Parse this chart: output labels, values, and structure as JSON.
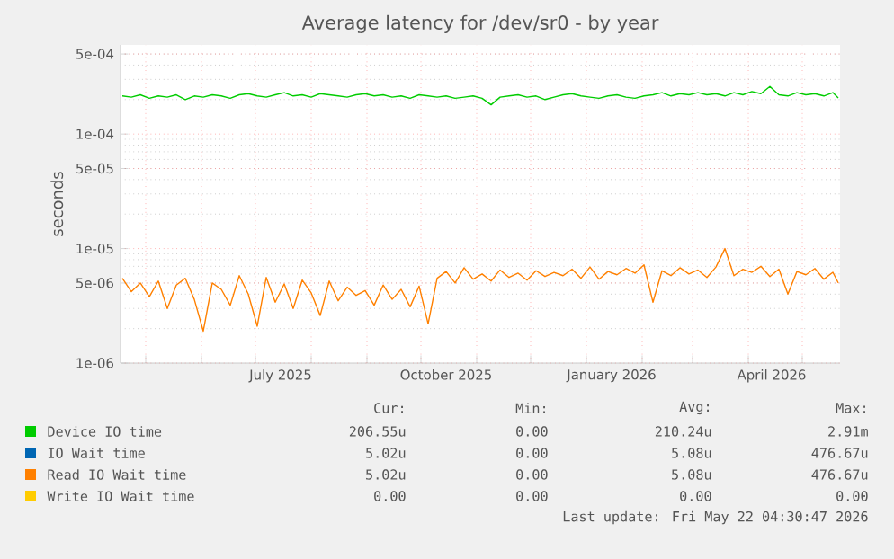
{
  "chart_data": {
    "type": "line",
    "title": "Average latency for /dev/sr0 - by year",
    "ylabel": "seconds",
    "log": "y",
    "grid": true,
    "legend": "bottom",
    "xlim": [
      "2025-04-17",
      "2026-05-22"
    ],
    "xticks": [
      {
        "value": "2025-05-01",
        "label": null
      },
      {
        "value": "2025-06-01",
        "label": null
      },
      {
        "value": "2025-07-01",
        "label": null
      },
      {
        "value": "2025-08-01",
        "label": null
      },
      {
        "value": "2025-09-01",
        "label": null
      },
      {
        "value": "2025-10-01",
        "label": null
      },
      {
        "value": "2025-11-01",
        "label": null
      },
      {
        "value": "2025-12-01",
        "label": null
      },
      {
        "value": "2026-01-01",
        "label": null
      },
      {
        "value": "2026-02-01",
        "label": null
      },
      {
        "value": "2026-03-01",
        "label": null
      },
      {
        "value": "2026-04-01",
        "label": null
      },
      {
        "value": "2026-05-01",
        "label": null
      },
      {
        "value": "2025-07-15",
        "label": "July 2025"
      },
      {
        "value": "2025-10-15",
        "label": "October 2025"
      },
      {
        "value": "2026-01-15",
        "label": "January 2026"
      },
      {
        "value": "2026-04-14",
        "label": "April 2026"
      }
    ],
    "ylim": [
      1e-06,
      0.0006
    ],
    "yticks": [
      {
        "value": 1e-06,
        "label": "1e-06"
      },
      {
        "value": 5e-06,
        "label": "5e-06"
      },
      {
        "value": 1e-05,
        "label": "1e-05"
      },
      {
        "value": 5e-05,
        "label": "5e-05"
      },
      {
        "value": 0.0001,
        "label": "1e-04"
      },
      {
        "value": 0.0005,
        "label": "5e-04"
      }
    ],
    "x": [
      "2025-04-18",
      "2025-04-23",
      "2025-04-28",
      "2025-05-03",
      "2025-05-08",
      "2025-05-13",
      "2025-05-18",
      "2025-05-23",
      "2025-05-28",
      "2025-06-02",
      "2025-06-07",
      "2025-06-12",
      "2025-06-17",
      "2025-06-22",
      "2025-06-27",
      "2025-07-02",
      "2025-07-07",
      "2025-07-12",
      "2025-07-17",
      "2025-07-22",
      "2025-07-27",
      "2025-08-01",
      "2025-08-06",
      "2025-08-11",
      "2025-08-16",
      "2025-08-21",
      "2025-08-26",
      "2025-08-31",
      "2025-09-05",
      "2025-09-10",
      "2025-09-15",
      "2025-09-20",
      "2025-09-25",
      "2025-09-30",
      "2025-10-05",
      "2025-10-10",
      "2025-10-15",
      "2025-10-20",
      "2025-10-25",
      "2025-10-30",
      "2025-11-04",
      "2025-11-09",
      "2025-11-14",
      "2025-11-19",
      "2025-11-24",
      "2025-11-29",
      "2025-12-04",
      "2025-12-09",
      "2025-12-14",
      "2025-12-19",
      "2025-12-24",
      "2025-12-29",
      "2026-01-03",
      "2026-01-08",
      "2026-01-13",
      "2026-01-18",
      "2026-01-23",
      "2026-01-28",
      "2026-02-02",
      "2026-02-07",
      "2026-02-12",
      "2026-02-17",
      "2026-02-22",
      "2026-02-27",
      "2026-03-04",
      "2026-03-09",
      "2026-03-14",
      "2026-03-19",
      "2026-03-24",
      "2026-03-29",
      "2026-04-03",
      "2026-04-08",
      "2026-04-13",
      "2026-04-18",
      "2026-04-23",
      "2026-04-28",
      "2026-05-03",
      "2026-05-08",
      "2026-05-13",
      "2026-05-18",
      "2026-05-21"
    ],
    "series": [
      {
        "name": "Device IO time",
        "color": "#00cc00",
        "values": [
          0.000215,
          0.00021,
          0.00022,
          0.000205,
          0.000215,
          0.00021,
          0.00022,
          0.0002,
          0.000215,
          0.00021,
          0.00022,
          0.000215,
          0.000205,
          0.00022,
          0.000225,
          0.000215,
          0.00021,
          0.00022,
          0.00023,
          0.000215,
          0.00022,
          0.00021,
          0.000225,
          0.00022,
          0.000215,
          0.00021,
          0.00022,
          0.000225,
          0.000215,
          0.00022,
          0.00021,
          0.000215,
          0.000205,
          0.00022,
          0.000215,
          0.00021,
          0.000215,
          0.000205,
          0.00021,
          0.000215,
          0.000205,
          0.00018,
          0.00021,
          0.000215,
          0.00022,
          0.00021,
          0.000215,
          0.0002,
          0.00021,
          0.00022,
          0.000225,
          0.000215,
          0.00021,
          0.000205,
          0.000215,
          0.00022,
          0.00021,
          0.000205,
          0.000215,
          0.00022,
          0.00023,
          0.000215,
          0.000225,
          0.00022,
          0.00023,
          0.00022,
          0.000225,
          0.000215,
          0.00023,
          0.00022,
          0.000235,
          0.000225,
          0.00026,
          0.00022,
          0.000215,
          0.00023,
          0.00022,
          0.000225,
          0.000215,
          0.00023,
          0.000207
        ]
      },
      {
        "name": "IO Wait time",
        "color": "#0066b3",
        "values": [
          null,
          null,
          null,
          null,
          null,
          null,
          null,
          null,
          null,
          null,
          null,
          null,
          null,
          null,
          null,
          null,
          null,
          null,
          null,
          null,
          null,
          null,
          null,
          null,
          null,
          null,
          null,
          null,
          null,
          null,
          null,
          null,
          null,
          null,
          null,
          null,
          null,
          null,
          null,
          null,
          null,
          null,
          null,
          null,
          null,
          null,
          null,
          null,
          null,
          null,
          null,
          null,
          null,
          null,
          null,
          null,
          null,
          null,
          null,
          null,
          null,
          null,
          null,
          null,
          null,
          null,
          null,
          null,
          null,
          null,
          null,
          null,
          null,
          null,
          null,
          null,
          null,
          null,
          null,
          null,
          null
        ]
      },
      {
        "name": "Read IO Wait time",
        "color": "#ff8000",
        "values": [
          5.5e-06,
          4.2e-06,
          5e-06,
          3.8e-06,
          5.2e-06,
          3e-06,
          4.8e-06,
          5.5e-06,
          3.6e-06,
          1.9e-06,
          5e-06,
          4.4e-06,
          3.2e-06,
          5.8e-06,
          4e-06,
          2.1e-06,
          5.6e-06,
          3.4e-06,
          4.9e-06,
          3e-06,
          5.3e-06,
          4.1e-06,
          2.6e-06,
          5.2e-06,
          3.5e-06,
          4.6e-06,
          3.9e-06,
          4.3e-06,
          3.2e-06,
          4.8e-06,
          3.6e-06,
          4.4e-06,
          3.1e-06,
          4.7e-06,
          2.2e-06,
          5.5e-06,
          6.3e-06,
          5e-06,
          6.8e-06,
          5.4e-06,
          6e-06,
          5.2e-06,
          6.5e-06,
          5.6e-06,
          6.1e-06,
          5.3e-06,
          6.4e-06,
          5.7e-06,
          6.2e-06,
          5.8e-06,
          6.6e-06,
          5.5e-06,
          6.9e-06,
          5.4e-06,
          6.3e-06,
          5.9e-06,
          6.7e-06,
          6.1e-06,
          7.2e-06,
          3.4e-06,
          6.4e-06,
          5.8e-06,
          6.8e-06,
          6e-06,
          6.5e-06,
          5.6e-06,
          6.9e-06,
          1e-05,
          5.8e-06,
          6.6e-06,
          6.2e-06,
          7e-06,
          5.7e-06,
          6.6e-06,
          4e-06,
          6.3e-06,
          5.9e-06,
          6.7e-06,
          5.4e-06,
          6.2e-06,
          5.02e-06
        ]
      },
      {
        "name": "Write IO Wait time",
        "color": "#ffcc00",
        "values": [
          null,
          null,
          null,
          null,
          null,
          null,
          null,
          null,
          null,
          null,
          null,
          null,
          null,
          null,
          null,
          null,
          null,
          null,
          null,
          null,
          null,
          null,
          null,
          null,
          null,
          null,
          null,
          null,
          null,
          null,
          null,
          null,
          null,
          null,
          null,
          null,
          null,
          null,
          null,
          null,
          null,
          null,
          null,
          null,
          null,
          null,
          null,
          null,
          null,
          null,
          null,
          null,
          null,
          null,
          null,
          null,
          null,
          null,
          null,
          null,
          null,
          null,
          null,
          null,
          null,
          null,
          null,
          null,
          null,
          null,
          null,
          null,
          null,
          null,
          null,
          null,
          null,
          null,
          null,
          null,
          null
        ]
      }
    ],
    "annotations": [
      "Cur:",
      "Min:",
      "Avg:",
      "Max:",
      "206.55u",
      "0.00",
      "210.24u",
      "2.91m",
      "5.02u",
      "0.00",
      "5.08u",
      "476.67u",
      "5.02u",
      "0.00",
      "5.08u",
      "476.67u",
      "0.00",
      "0.00",
      "0.00",
      "0.00",
      "Last update: Fri May 22 04:30:47 2026"
    ]
  }
}
